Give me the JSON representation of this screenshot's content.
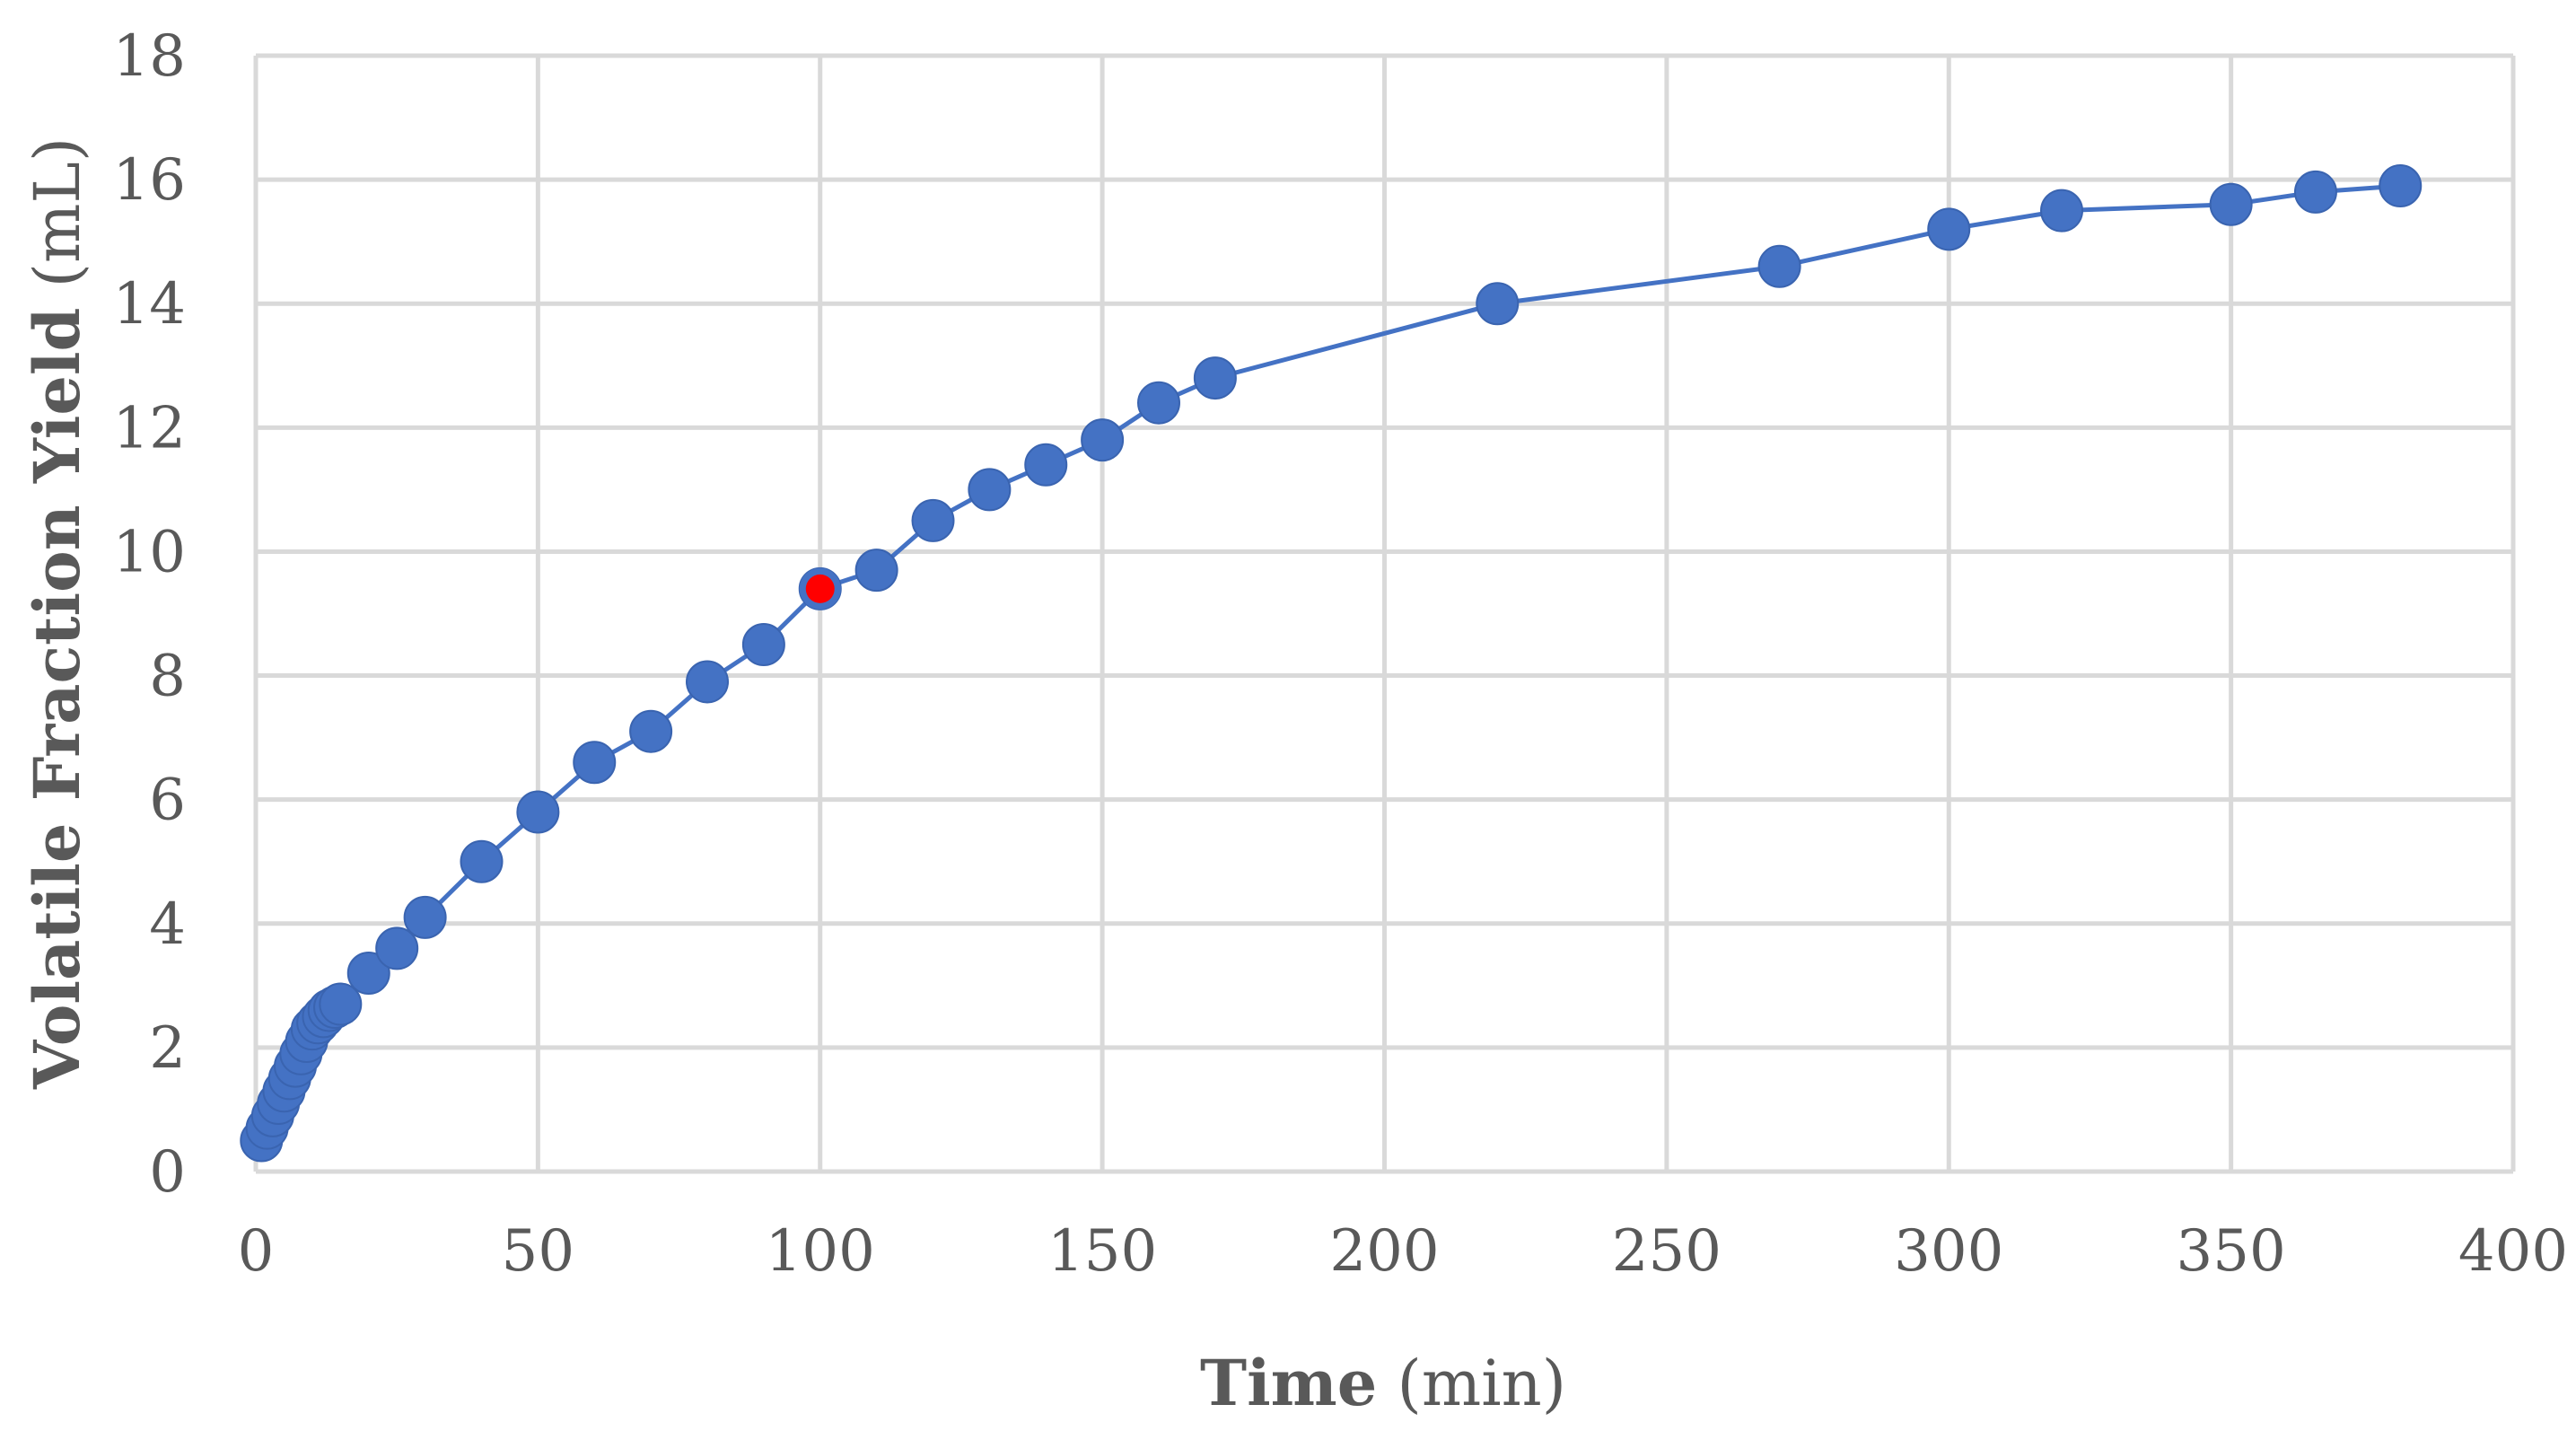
{
  "chart_data": {
    "type": "scatter",
    "title": "",
    "xlabel": {
      "main": "Time",
      "unit": " (min)"
    },
    "ylabel": {
      "main": "Volatile Fraction Yield",
      "unit": " (mL)"
    },
    "xlim": [
      0,
      400
    ],
    "ylim": [
      0,
      18
    ],
    "xticks": [
      0,
      50,
      100,
      150,
      200,
      250,
      300,
      350,
      400
    ],
    "yticks": [
      0,
      2,
      4,
      6,
      8,
      10,
      12,
      14,
      16,
      18
    ],
    "grid": true,
    "legend": "none",
    "colors": {
      "series": "#4472c4",
      "highlight": "#ff0000",
      "grid": "#d9d9d9",
      "text": "#595959"
    },
    "series": [
      {
        "x": [
          1,
          2,
          3,
          4,
          5,
          6,
          7,
          8,
          9,
          10,
          11,
          12,
          13,
          14,
          15,
          20,
          25,
          30,
          40,
          50,
          60,
          70,
          80,
          90,
          100,
          110,
          120,
          130,
          140,
          150,
          160,
          170,
          220,
          270,
          300,
          320,
          350,
          365,
          380
        ],
        "y": [
          0.5,
          0.7,
          0.9,
          1.1,
          1.3,
          1.5,
          1.7,
          1.9,
          2.1,
          2.3,
          2.4,
          2.5,
          2.6,
          2.65,
          2.7,
          3.2,
          3.6,
          4.1,
          5.0,
          5.8,
          6.6,
          7.1,
          7.9,
          8.5,
          9.4,
          9.7,
          10.5,
          11.0,
          11.4,
          11.8,
          12.4,
          12.8,
          14.0,
          14.6,
          15.2,
          15.5,
          15.6,
          15.8,
          15.9
        ]
      }
    ],
    "highlight_point": {
      "x": 100,
      "y": 9.4
    }
  }
}
